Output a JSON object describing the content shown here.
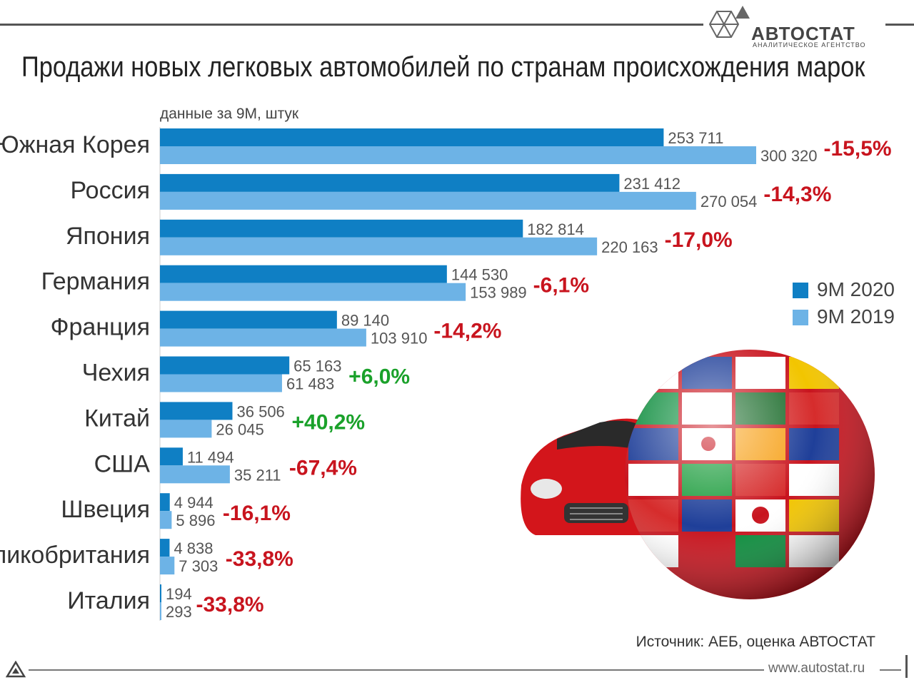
{
  "header": {
    "logo_name": "АВТОСТАТ",
    "logo_tagline": "АНАЛИТИЧЕСКОЕ АГЕНТСТВО",
    "title": "Продажи новых легковых автомобилей по странам происхождения марок"
  },
  "chart_data": {
    "type": "bar",
    "orientation": "horizontal",
    "subtitle": "данные за 9М, штук",
    "categories": [
      "Южная Корея",
      "Россия",
      "Япония",
      "Германия",
      "Франция",
      "Чехия",
      "Китай",
      "США",
      "Швеция",
      "Великобритания",
      "Италия"
    ],
    "series": [
      {
        "name": "9М 2020",
        "color": "#0f7fc4",
        "values": [
          253711,
          231412,
          182814,
          144530,
          89140,
          65163,
          36506,
          11494,
          4944,
          4838,
          194
        ]
      },
      {
        "name": "9М 2019",
        "color": "#6db3e6",
        "values": [
          300320,
          270054,
          220163,
          153989,
          103910,
          61483,
          26045,
          35211,
          5896,
          7303,
          293
        ]
      }
    ],
    "value_labels_2020": [
      "253 711",
      "231 412",
      "182 814",
      "144 530",
      "89 140",
      "65 163",
      "36 506",
      "11 494",
      "4 944",
      "4 838",
      "194"
    ],
    "value_labels_2019": [
      "300 320",
      "270 054",
      "220 163",
      "153 989",
      "103 910",
      "61 483",
      "26 045",
      "35 211",
      "5 896",
      "7 303",
      "293"
    ],
    "changes": [
      "-15,5%",
      "-14,3%",
      "-17,0%",
      "-6,1%",
      "-14,2%",
      "+6,0%",
      "+40,2%",
      "-67,4%",
      "-16,1%",
      "-33,8%",
      "-33,8%"
    ],
    "change_colors": {
      "negative": "#c8141e",
      "positive": "#1aa12a"
    },
    "legend_position": "right"
  },
  "footer": {
    "source": "Источник: АЕБ, оценка АВТОСТАТ",
    "website": "www.autostat.ru"
  }
}
